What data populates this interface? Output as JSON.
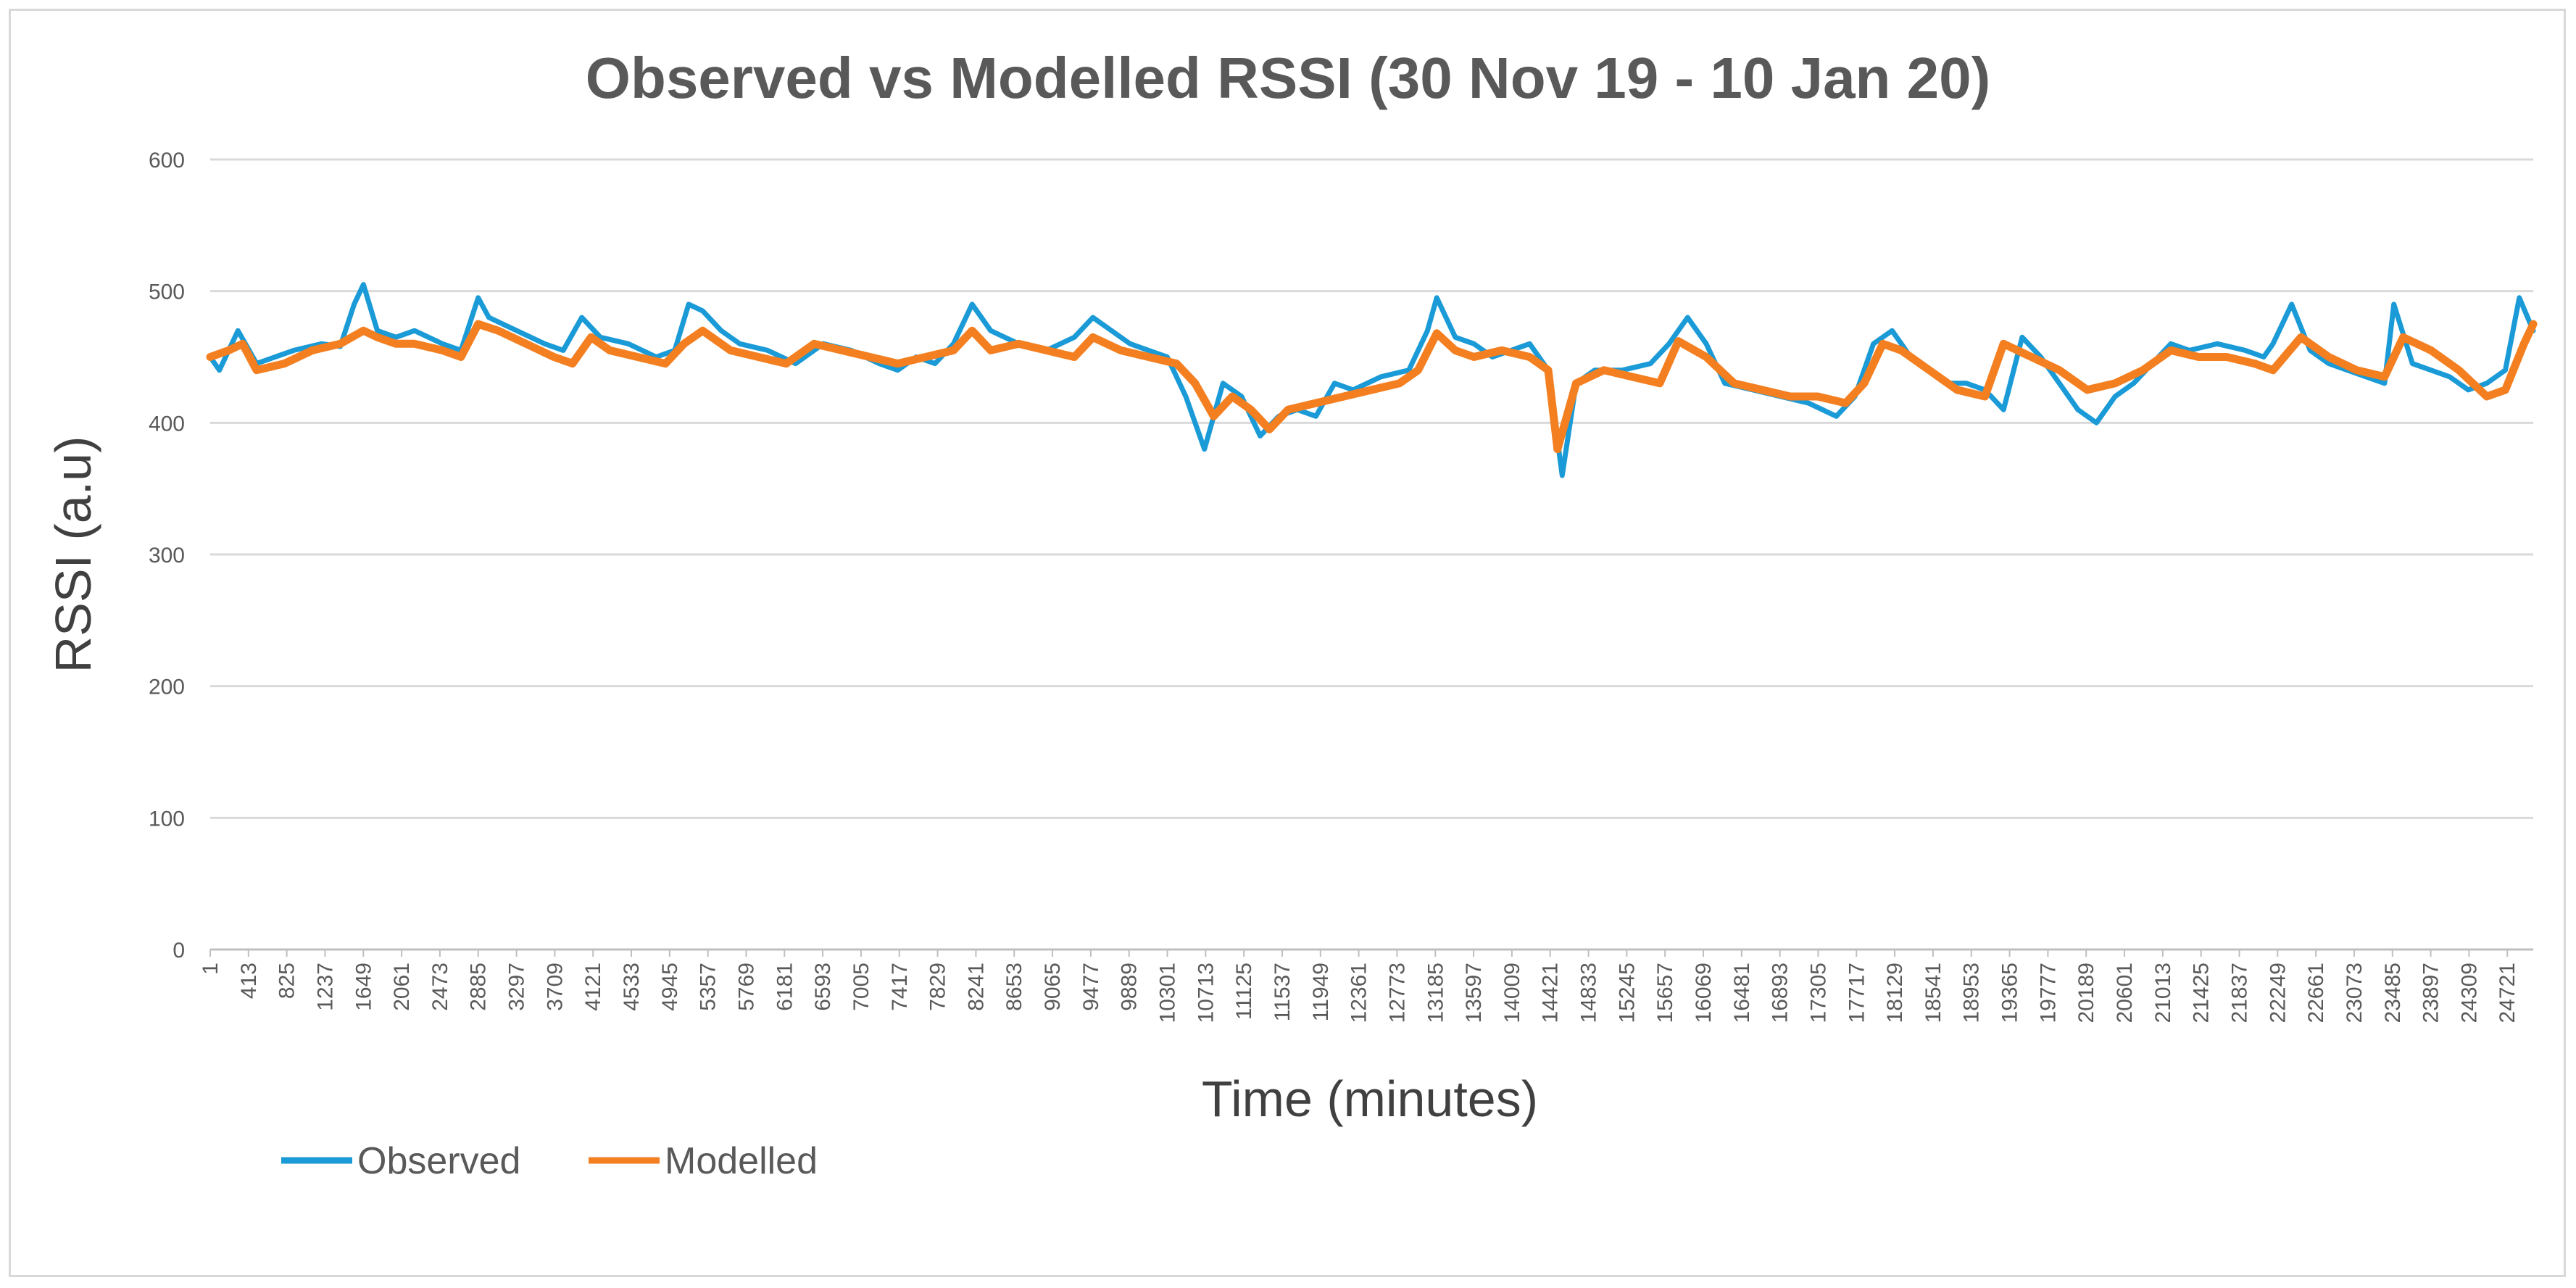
{
  "chart_data": {
    "type": "line",
    "title": "Observed vs Modelled RSSI (30 Nov 19 - 10 Jan 20)",
    "xlabel": "Time (minutes)",
    "ylabel": "RSSI (a.u)",
    "ylim": [
      0,
      600
    ],
    "yticks": [
      0,
      100,
      200,
      300,
      400,
      500,
      600
    ],
    "xlim": [
      1,
      25000
    ],
    "xtick_labels": [
      "1",
      "413",
      "825",
      "1237",
      "1649",
      "2061",
      "2473",
      "2885",
      "3297",
      "3709",
      "4121",
      "4533",
      "4945",
      "5357",
      "5769",
      "6181",
      "6593",
      "7005",
      "7417",
      "7829",
      "8241",
      "8653",
      "9065",
      "9477",
      "9889",
      "10301",
      "10713",
      "11125",
      "11537",
      "11949",
      "12361",
      "12773",
      "13185",
      "13597",
      "14009",
      "14421",
      "14833",
      "15245",
      "15657",
      "16069",
      "16481",
      "16893",
      "17305",
      "17717",
      "18129",
      "18541",
      "18953",
      "19365",
      "19777",
      "20189",
      "20601",
      "21013",
      "21425",
      "21837",
      "22249",
      "22661",
      "23073",
      "23485",
      "23897",
      "24309",
      "24721"
    ],
    "grid": true,
    "legend_position": "bottom-left",
    "series": [
      {
        "name": "Observed",
        "color": "#1a9ad6",
        "x": [
          1,
          100,
          300,
          500,
          700,
          900,
          1200,
          1400,
          1550,
          1650,
          1800,
          2000,
          2200,
          2500,
          2700,
          2885,
          3000,
          3300,
          3600,
          3800,
          4000,
          4200,
          4500,
          4800,
          5000,
          5150,
          5300,
          5500,
          5700,
          6000,
          6300,
          6600,
          6900,
          7200,
          7400,
          7600,
          7800,
          8000,
          8200,
          8400,
          8700,
          9000,
          9300,
          9500,
          9700,
          9900,
          10100,
          10300,
          10500,
          10700,
          10900,
          11100,
          11300,
          11500,
          11700,
          11900,
          12100,
          12300,
          12600,
          12900,
          13100,
          13200,
          13400,
          13600,
          13800,
          14000,
          14200,
          14400,
          14550,
          14700,
          14900,
          15200,
          15500,
          15700,
          15900,
          16100,
          16300,
          16600,
          16900,
          17200,
          17500,
          17700,
          17900,
          18100,
          18300,
          18500,
          18700,
          18900,
          19100,
          19300,
          19500,
          19700,
          19900,
          20100,
          20300,
          20500,
          20700,
          20900,
          21100,
          21300,
          21600,
          21900,
          22100,
          22200,
          22400,
          22600,
          22800,
          23000,
          23200,
          23400,
          23500,
          23700,
          23900,
          24100,
          24300,
          24500,
          24700,
          24850,
          25000
        ],
        "y": [
          450,
          440,
          470,
          445,
          450,
          455,
          460,
          458,
          490,
          505,
          470,
          465,
          470,
          460,
          455,
          495,
          480,
          470,
          460,
          455,
          480,
          465,
          460,
          450,
          455,
          490,
          485,
          470,
          460,
          455,
          445,
          460,
          455,
          445,
          440,
          450,
          445,
          460,
          490,
          470,
          460,
          455,
          465,
          480,
          470,
          460,
          455,
          450,
          420,
          380,
          430,
          420,
          390,
          405,
          410,
          405,
          430,
          425,
          435,
          440,
          470,
          495,
          465,
          460,
          450,
          455,
          460,
          440,
          360,
          430,
          440,
          440,
          445,
          460,
          480,
          460,
          430,
          425,
          420,
          415,
          405,
          420,
          460,
          470,
          450,
          440,
          430,
          430,
          425,
          410,
          465,
          450,
          430,
          410,
          400,
          420,
          430,
          445,
          460,
          455,
          460,
          455,
          450,
          460,
          490,
          455,
          445,
          440,
          435,
          430,
          490,
          445,
          440,
          435,
          425,
          430,
          440,
          495,
          470
        ]
      },
      {
        "name": "Modelled",
        "color": "#f47f20",
        "x": [
          1,
          200,
          350,
          500,
          800,
          1100,
          1400,
          1650,
          1800,
          2000,
          2200,
          2500,
          2700,
          2885,
          3100,
          3400,
          3700,
          3900,
          4100,
          4300,
          4600,
          4900,
          5100,
          5300,
          5600,
          5900,
          6200,
          6500,
          6800,
          7100,
          7400,
          7700,
          8000,
          8200,
          8400,
          8700,
          9000,
          9300,
          9500,
          9800,
          10100,
          10400,
          10600,
          10800,
          11000,
          11200,
          11400,
          11600,
          11900,
          12200,
          12500,
          12800,
          13000,
          13200,
          13400,
          13600,
          13900,
          14200,
          14400,
          14500,
          14700,
          15000,
          15300,
          15600,
          15800,
          16100,
          16400,
          16700,
          17000,
          17300,
          17600,
          17800,
          18000,
          18200,
          18500,
          18800,
          19100,
          19300,
          19600,
          19900,
          20200,
          20500,
          20800,
          21100,
          21400,
          21700,
          22000,
          22200,
          22500,
          22800,
          23100,
          23400,
          23600,
          23900,
          24200,
          24500,
          24700,
          24900,
          25000
        ],
        "y": [
          450,
          455,
          460,
          440,
          445,
          455,
          460,
          470,
          465,
          460,
          460,
          455,
          450,
          475,
          470,
          460,
          450,
          445,
          465,
          455,
          450,
          445,
          460,
          470,
          455,
          450,
          445,
          460,
          455,
          450,
          445,
          450,
          455,
          470,
          455,
          460,
          455,
          450,
          465,
          455,
          450,
          445,
          430,
          405,
          420,
          410,
          395,
          410,
          415,
          420,
          425,
          430,
          440,
          468,
          455,
          450,
          455,
          450,
          440,
          380,
          430,
          440,
          435,
          430,
          462,
          450,
          430,
          425,
          420,
          420,
          415,
          430,
          460,
          455,
          440,
          425,
          420,
          460,
          450,
          440,
          425,
          430,
          440,
          455,
          450,
          450,
          445,
          440,
          465,
          450,
          440,
          435,
          465,
          455,
          440,
          420,
          425,
          460,
          475
        ]
      }
    ]
  }
}
